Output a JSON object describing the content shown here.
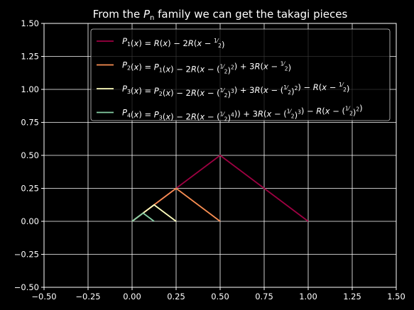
{
  "chart_data": {
    "type": "line",
    "title": "From the $P_n$ family we can get the takagi pieces",
    "title_display": {
      "prefix": "From the ",
      "var": "P",
      "sub": "n",
      "suffix": " family we can get the takagi pieces"
    },
    "xlabel": "",
    "ylabel": "",
    "xlim": [
      -0.5,
      1.5
    ],
    "ylim": [
      -0.5,
      1.5
    ],
    "xticks": [
      -0.5,
      -0.25,
      0.0,
      0.25,
      0.5,
      0.75,
      1.0,
      1.25,
      1.5
    ],
    "yticks": [
      -0.5,
      -0.25,
      0.0,
      0.25,
      0.5,
      0.75,
      1.0,
      1.25,
      1.5
    ],
    "xtick_labels": [
      "−0.50",
      "−0.25",
      "0.00",
      "0.25",
      "0.50",
      "0.75",
      "1.00",
      "1.25",
      "1.50"
    ],
    "ytick_labels": [
      "−0.50",
      "−0.25",
      "0.00",
      "0.25",
      "0.50",
      "0.75",
      "1.00",
      "1.25",
      "1.50"
    ],
    "grid": true,
    "legend_position": "upper right",
    "background": "#000000",
    "series": [
      {
        "name": "$P_1(x) = R(x) - 2R(x - \\frac{1}{2})$",
        "color": "#9e0142",
        "x": [
          0.0,
          0.5,
          1.0
        ],
        "y": [
          0.0,
          0.5,
          0.0
        ]
      },
      {
        "name": "$P_2(x) = P_1(x) - 2R(x - (\\frac{1}{2})^2) + 3R(x - \\frac{1}{2})$",
        "color": "#f98e52",
        "x": [
          0.0,
          0.25,
          0.5
        ],
        "y": [
          0.0,
          0.25,
          0.0
        ]
      },
      {
        "name": "$P_3(x) = P_2(x) - 2R(x - (\\frac{1}{2})^3) + 3R(x - (\\frac{1}{2})^2) - R(x - \\frac{1}{2})$",
        "color": "#ffffbe",
        "x": [
          0.0,
          0.125,
          0.25
        ],
        "y": [
          0.0,
          0.125,
          0.0
        ]
      },
      {
        "name": "$P_4(x) = P_3(x) - 2R(x - (\\frac{1}{2})^4)) + 3R(x - (\\frac{1}{2})^3) - R(x - (\\frac{1}{2})^2)$",
        "color": "#86cfa5",
        "x": [
          0.0,
          0.0625,
          0.125
        ],
        "y": [
          0.0,
          0.0625,
          0.0
        ]
      }
    ],
    "legend_entries": [
      [
        {
          "t": "P",
          "i": true
        },
        {
          "sub": "1"
        },
        {
          "t": "("
        },
        {
          "t": "x",
          "i": true
        },
        {
          "t": ") = "
        },
        {
          "t": "R",
          "i": true
        },
        {
          "t": "("
        },
        {
          "t": "x",
          "i": true
        },
        {
          "t": ") − 2"
        },
        {
          "t": "R",
          "i": true
        },
        {
          "t": "("
        },
        {
          "t": "x",
          "i": true
        },
        {
          "t": " − "
        },
        {
          "frac": [
            "1",
            "2"
          ]
        },
        {
          "t": ")"
        }
      ],
      [
        {
          "t": "P",
          "i": true
        },
        {
          "sub": "2"
        },
        {
          "t": "("
        },
        {
          "t": "x",
          "i": true
        },
        {
          "t": ") = "
        },
        {
          "t": "P",
          "i": true
        },
        {
          "sub": "1"
        },
        {
          "t": "("
        },
        {
          "t": "x",
          "i": true
        },
        {
          "t": ") − 2"
        },
        {
          "t": "R",
          "i": true
        },
        {
          "t": "("
        },
        {
          "t": "x",
          "i": true
        },
        {
          "t": " − ("
        },
        {
          "frac": [
            "1",
            "2"
          ]
        },
        {
          "t": ")"
        },
        {
          "sup": "2"
        },
        {
          "t": ") + 3"
        },
        {
          "t": "R",
          "i": true
        },
        {
          "t": "("
        },
        {
          "t": "x",
          "i": true
        },
        {
          "t": " − "
        },
        {
          "frac": [
            "1",
            "2"
          ]
        },
        {
          "t": ")"
        }
      ],
      [
        {
          "t": "P",
          "i": true
        },
        {
          "sub": "3"
        },
        {
          "t": "("
        },
        {
          "t": "x",
          "i": true
        },
        {
          "t": ") = "
        },
        {
          "t": "P",
          "i": true
        },
        {
          "sub": "2"
        },
        {
          "t": "("
        },
        {
          "t": "x",
          "i": true
        },
        {
          "t": ") − 2"
        },
        {
          "t": "R",
          "i": true
        },
        {
          "t": "("
        },
        {
          "t": "x",
          "i": true
        },
        {
          "t": " − ("
        },
        {
          "frac": [
            "1",
            "2"
          ]
        },
        {
          "t": ")"
        },
        {
          "sup": "3"
        },
        {
          "t": ") + 3"
        },
        {
          "t": "R",
          "i": true
        },
        {
          "t": "("
        },
        {
          "t": "x",
          "i": true
        },
        {
          "t": " − ("
        },
        {
          "frac": [
            "1",
            "2"
          ]
        },
        {
          "t": ")"
        },
        {
          "sup": "2"
        },
        {
          "t": ") − "
        },
        {
          "t": "R",
          "i": true
        },
        {
          "t": "("
        },
        {
          "t": "x",
          "i": true
        },
        {
          "t": " − "
        },
        {
          "frac": [
            "1",
            "2"
          ]
        },
        {
          "t": ")"
        }
      ],
      [
        {
          "t": "P",
          "i": true
        },
        {
          "sub": "4"
        },
        {
          "t": "("
        },
        {
          "t": "x",
          "i": true
        },
        {
          "t": ") = "
        },
        {
          "t": "P",
          "i": true
        },
        {
          "sub": "3"
        },
        {
          "t": "("
        },
        {
          "t": "x",
          "i": true
        },
        {
          "t": ") − 2"
        },
        {
          "t": "R",
          "i": true
        },
        {
          "t": "("
        },
        {
          "t": "x",
          "i": true
        },
        {
          "t": " − ("
        },
        {
          "frac": [
            "1",
            "2"
          ]
        },
        {
          "t": ")"
        },
        {
          "sup": "4"
        },
        {
          "t": ")) + 3"
        },
        {
          "t": "R",
          "i": true
        },
        {
          "t": "("
        },
        {
          "t": "x",
          "i": true
        },
        {
          "t": " − ("
        },
        {
          "frac": [
            "1",
            "2"
          ]
        },
        {
          "t": ")"
        },
        {
          "sup": "3"
        },
        {
          "t": ") − "
        },
        {
          "t": "R",
          "i": true
        },
        {
          "t": "("
        },
        {
          "t": "x",
          "i": true
        },
        {
          "t": " − ("
        },
        {
          "frac": [
            "1",
            "2"
          ]
        },
        {
          "t": ")"
        },
        {
          "sup": "2"
        },
        {
          "t": ")"
        }
      ]
    ]
  }
}
